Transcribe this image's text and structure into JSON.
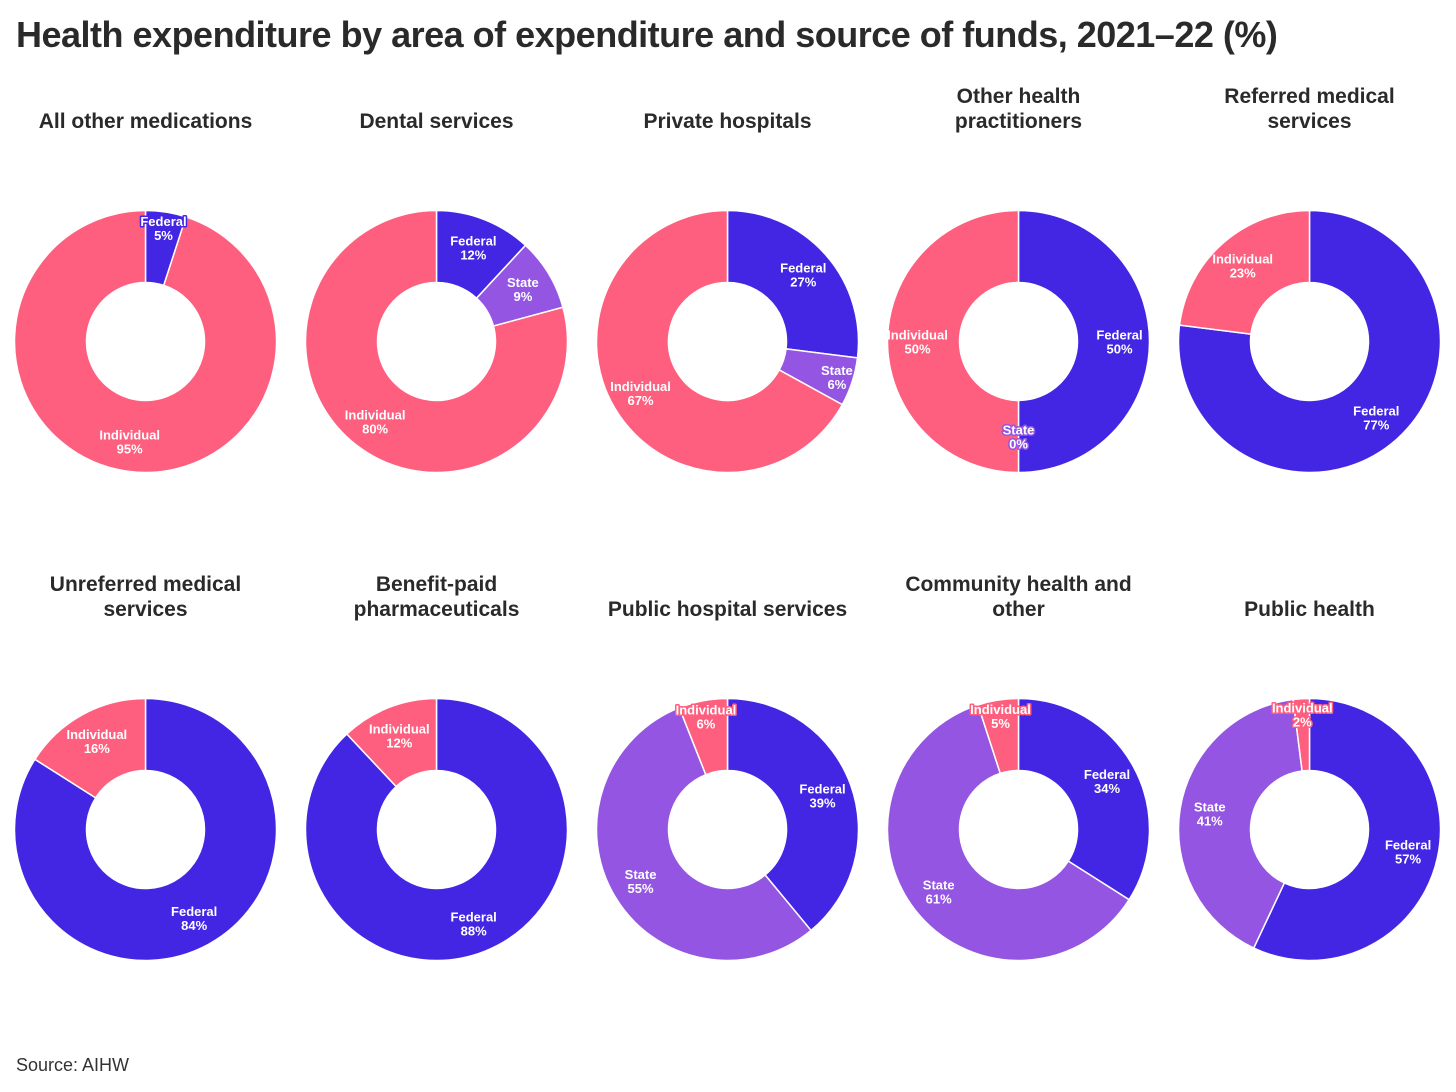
{
  "title": "Health expenditure by area of expenditure and source of funds, 2021–22 (%)",
  "source": "Source: AIHW",
  "colors": {
    "Federal": "#4326e3",
    "State": "#9355e2",
    "Individual": "#fe5f7e"
  },
  "chart_data": [
    {
      "type": "pie",
      "title": "All other medications",
      "slices": [
        {
          "label": "Federal",
          "value": 5
        },
        {
          "label": "State",
          "value": 0
        },
        {
          "label": "Individual",
          "value": 95
        }
      ]
    },
    {
      "type": "pie",
      "title": "Dental services",
      "slices": [
        {
          "label": "Federal",
          "value": 12
        },
        {
          "label": "State",
          "value": 9
        },
        {
          "label": "Individual",
          "value": 80
        }
      ]
    },
    {
      "type": "pie",
      "title": "Private hospitals",
      "slices": [
        {
          "label": "Federal",
          "value": 27
        },
        {
          "label": "State",
          "value": 6
        },
        {
          "label": "Individual",
          "value": 67
        }
      ]
    },
    {
      "type": "pie",
      "title": "Other health\npractitioners",
      "slices": [
        {
          "label": "Federal",
          "value": 50
        },
        {
          "label": "State",
          "value": 0
        },
        {
          "label": "Individual",
          "value": 50
        }
      ]
    },
    {
      "type": "pie",
      "title": "Referred medical\nservices",
      "slices": [
        {
          "label": "Federal",
          "value": 77
        },
        {
          "label": "State",
          "value": 0
        },
        {
          "label": "Individual",
          "value": 23
        }
      ]
    },
    {
      "type": "pie",
      "title": "Unreferred medical\nservices",
      "slices": [
        {
          "label": "Federal",
          "value": 84
        },
        {
          "label": "State",
          "value": 0
        },
        {
          "label": "Individual",
          "value": 16
        }
      ]
    },
    {
      "type": "pie",
      "title": "Benefit-paid\npharmaceuticals",
      "slices": [
        {
          "label": "Federal",
          "value": 88
        },
        {
          "label": "State",
          "value": 0
        },
        {
          "label": "Individual",
          "value": 12
        }
      ]
    },
    {
      "type": "pie",
      "title": "Public hospital services",
      "slices": [
        {
          "label": "Federal",
          "value": 39
        },
        {
          "label": "State",
          "value": 55
        },
        {
          "label": "Individual",
          "value": 6
        }
      ]
    },
    {
      "type": "pie",
      "title": "Community health and\nother",
      "slices": [
        {
          "label": "Federal",
          "value": 34
        },
        {
          "label": "State",
          "value": 61
        },
        {
          "label": "Individual",
          "value": 5
        }
      ]
    },
    {
      "type": "pie",
      "title": "Public health",
      "slices": [
        {
          "label": "Federal",
          "value": 57
        },
        {
          "label": "State",
          "value": 41
        },
        {
          "label": "Individual",
          "value": 2
        }
      ]
    }
  ]
}
